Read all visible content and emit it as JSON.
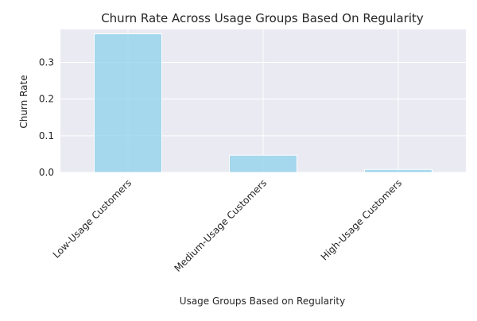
{
  "chart_data": {
    "type": "bar",
    "title": "Churn Rate Across Usage Groups Based On Regularity",
    "xlabel": "Usage Groups Based on Regularity",
    "ylabel": "Churn Rate",
    "categories": [
      "Low-Usage Customers",
      "Medium-Usage Customers",
      "High-Usage Customers"
    ],
    "values": [
      0.378,
      0.047,
      0.008
    ],
    "ylim": [
      0,
      0.39
    ],
    "yticks": [
      "0.0",
      "0.1",
      "0.2",
      "0.3"
    ],
    "ytick_values": [
      0,
      0.1,
      0.2,
      0.3
    ],
    "grid": true,
    "colors": {
      "bar": "#87ceeb",
      "plot_background": "#eaeaf2",
      "grid": "#ffffff"
    }
  }
}
